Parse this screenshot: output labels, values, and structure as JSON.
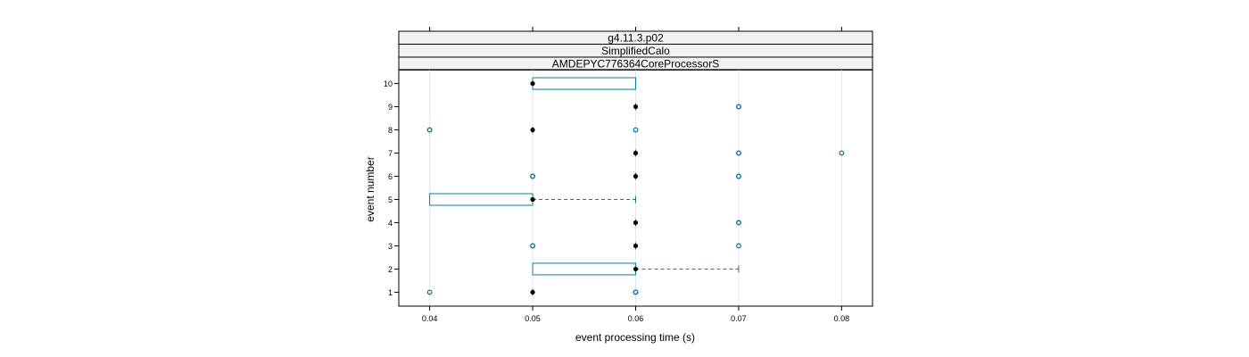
{
  "chart_data": {
    "type": "boxplot",
    "strips": [
      "g4.11.3.p02",
      "SimplifiedCalo",
      "AMDEPYC776364CoreProcessorS"
    ],
    "xlabel": "event processing time (s)",
    "ylabel": "event number",
    "x_ticks": [
      "0.04",
      "0.05",
      "0.06",
      "0.07",
      "0.08"
    ],
    "xlim": [
      0.037,
      0.083
    ],
    "y_ticks": [
      "1",
      "2",
      "3",
      "4",
      "5",
      "6",
      "7",
      "8",
      "9",
      "10"
    ],
    "ylim": [
      0.4,
      10.6
    ],
    "grid": "vertical",
    "accent_color": "#0080a8",
    "median_color": "#000000",
    "boxes": [
      {
        "event": 1,
        "whisker_low": 0.05,
        "q1": 0.05,
        "median": 0.05,
        "q3": 0.05,
        "whisker_high": 0.05,
        "outliers": [
          0.04,
          0.06,
          0.06
        ]
      },
      {
        "event": 2,
        "whisker_low": 0.05,
        "q1": 0.05,
        "median": 0.06,
        "q3": 0.06,
        "whisker_high": 0.07,
        "outliers": []
      },
      {
        "event": 3,
        "whisker_low": 0.06,
        "q1": 0.06,
        "median": 0.06,
        "q3": 0.06,
        "whisker_high": 0.06,
        "outliers": [
          0.05,
          0.05,
          0.07
        ]
      },
      {
        "event": 4,
        "whisker_low": 0.06,
        "q1": 0.06,
        "median": 0.06,
        "q3": 0.06,
        "whisker_high": 0.06,
        "outliers": [
          0.07,
          0.07
        ]
      },
      {
        "event": 5,
        "whisker_low": 0.04,
        "q1": 0.04,
        "median": 0.05,
        "q3": 0.05,
        "whisker_high": 0.06,
        "outliers": []
      },
      {
        "event": 6,
        "whisker_low": 0.06,
        "q1": 0.06,
        "median": 0.06,
        "q3": 0.06,
        "whisker_high": 0.06,
        "outliers": [
          0.05,
          0.05,
          0.07,
          0.07
        ]
      },
      {
        "event": 7,
        "whisker_low": 0.06,
        "q1": 0.06,
        "median": 0.06,
        "q3": 0.06,
        "whisker_high": 0.06,
        "outliers": [
          0.07,
          0.07,
          0.08
        ]
      },
      {
        "event": 8,
        "whisker_low": 0.05,
        "q1": 0.05,
        "median": 0.05,
        "q3": 0.05,
        "whisker_high": 0.05,
        "outliers": [
          0.04,
          0.04,
          0.06
        ]
      },
      {
        "event": 9,
        "whisker_low": 0.06,
        "q1": 0.06,
        "median": 0.06,
        "q3": 0.06,
        "whisker_high": 0.06,
        "outliers": [
          0.07,
          0.07
        ]
      },
      {
        "event": 10,
        "whisker_low": 0.05,
        "q1": 0.05,
        "median": 0.05,
        "q3": 0.06,
        "whisker_high": 0.06,
        "outliers": []
      }
    ]
  }
}
